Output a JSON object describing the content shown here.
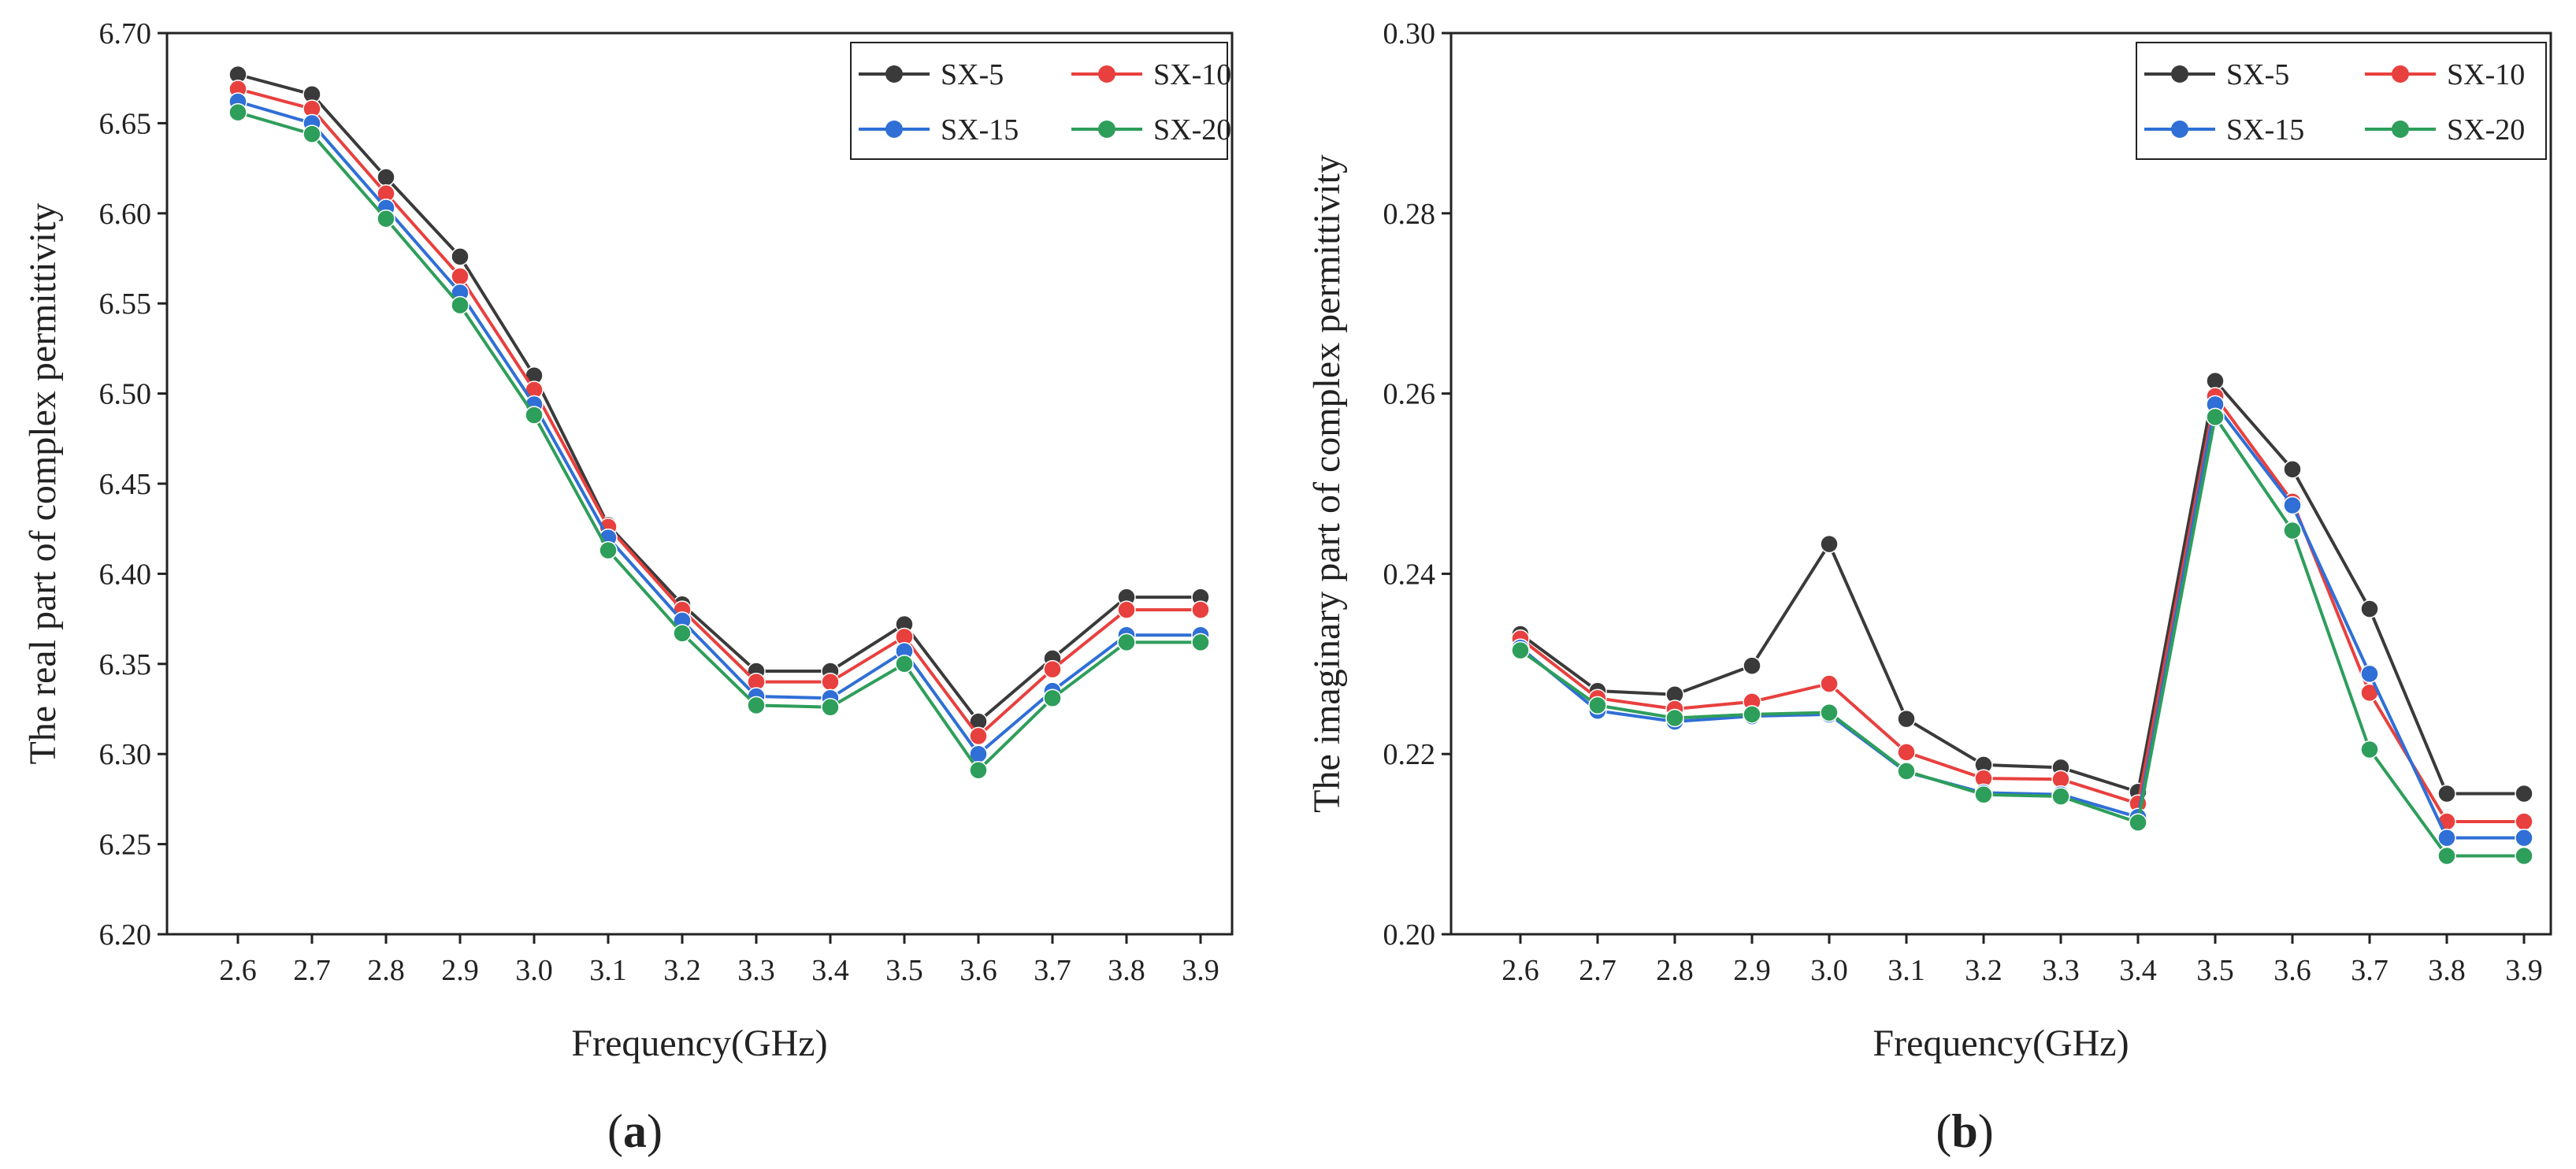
{
  "chart_data": [
    {
      "type": "line",
      "panel_label": "a",
      "xlabel": "Frequency(GHz)",
      "ylabel": "The real part of complex permittivity",
      "categories": [
        "2.6",
        "2.7",
        "2.8",
        "2.9",
        "3.0",
        "3.1",
        "3.2",
        "3.3",
        "3.4",
        "3.5",
        "3.6",
        "3.7",
        "3.8",
        "3.9"
      ],
      "ylim": [
        6.2,
        6.7
      ],
      "yticks": [
        "6.20",
        "6.25",
        "6.30",
        "6.35",
        "6.40",
        "6.45",
        "6.50",
        "6.55",
        "6.60",
        "6.65",
        "6.70"
      ],
      "grid": false,
      "legend_position": "top-right",
      "series": [
        {
          "name": "SX-5",
          "color": "#3a3a3a",
          "values": [
            6.677,
            6.666,
            6.62,
            6.576,
            6.51,
            6.427,
            6.383,
            6.346,
            6.346,
            6.372,
            6.318,
            6.353,
            6.387,
            6.387
          ]
        },
        {
          "name": "SX-10",
          "color": "#e8403e",
          "values": [
            6.669,
            6.658,
            6.611,
            6.565,
            6.502,
            6.426,
            6.38,
            6.34,
            6.34,
            6.365,
            6.31,
            6.347,
            6.38,
            6.38
          ]
        },
        {
          "name": "SX-15",
          "color": "#2f6fd6",
          "values": [
            6.662,
            6.65,
            6.603,
            6.556,
            6.494,
            6.42,
            6.374,
            6.332,
            6.331,
            6.357,
            6.3,
            6.335,
            6.366,
            6.366
          ]
        },
        {
          "name": "SX-20",
          "color": "#2e9e5b",
          "values": [
            6.656,
            6.644,
            6.597,
            6.549,
            6.488,
            6.413,
            6.367,
            6.327,
            6.326,
            6.35,
            6.291,
            6.331,
            6.362,
            6.362
          ]
        }
      ]
    },
    {
      "type": "line",
      "panel_label": "b",
      "xlabel": "Frequency(GHz)",
      "ylabel": "The imaginary part of complex permittivity",
      "categories": [
        "2.6",
        "2.7",
        "2.8",
        "2.9",
        "3.0",
        "3.1",
        "3.2",
        "3.3",
        "3.4",
        "3.5",
        "3.6",
        "3.7",
        "3.8",
        "3.9"
      ],
      "ylim": [
        0.2,
        0.3
      ],
      "yticks": [
        "0.20",
        "0.22",
        "0.24",
        "0.26",
        "0.28",
        "0.30"
      ],
      "grid": false,
      "legend_position": "top-right",
      "series": [
        {
          "name": "SX-5",
          "color": "#3a3a3a",
          "values": [
            0.2333,
            0.227,
            0.2266,
            0.2298,
            0.2433,
            0.2239,
            0.2188,
            0.2185,
            0.2158,
            0.2614,
            0.2516,
            0.2361,
            0.2156,
            0.2156
          ]
        },
        {
          "name": "SX-10",
          "color": "#e8403e",
          "values": [
            0.2328,
            0.2262,
            0.225,
            0.2258,
            0.2278,
            0.2202,
            0.2173,
            0.2172,
            0.2145,
            0.2597,
            0.248,
            0.2268,
            0.2125,
            0.2125
          ]
        },
        {
          "name": "SX-15",
          "color": "#2f6fd6",
          "values": [
            0.2318,
            0.2248,
            0.2236,
            0.2242,
            0.2244,
            0.218,
            0.2157,
            0.2155,
            0.213,
            0.2588,
            0.2476,
            0.2289,
            0.2107,
            0.2107
          ]
        },
        {
          "name": "SX-20",
          "color": "#2e9e5b",
          "values": [
            0.2315,
            0.2254,
            0.224,
            0.2244,
            0.2246,
            0.2181,
            0.2155,
            0.2153,
            0.2124,
            0.2574,
            0.2448,
            0.2205,
            0.2087,
            0.2087
          ]
        }
      ]
    }
  ]
}
